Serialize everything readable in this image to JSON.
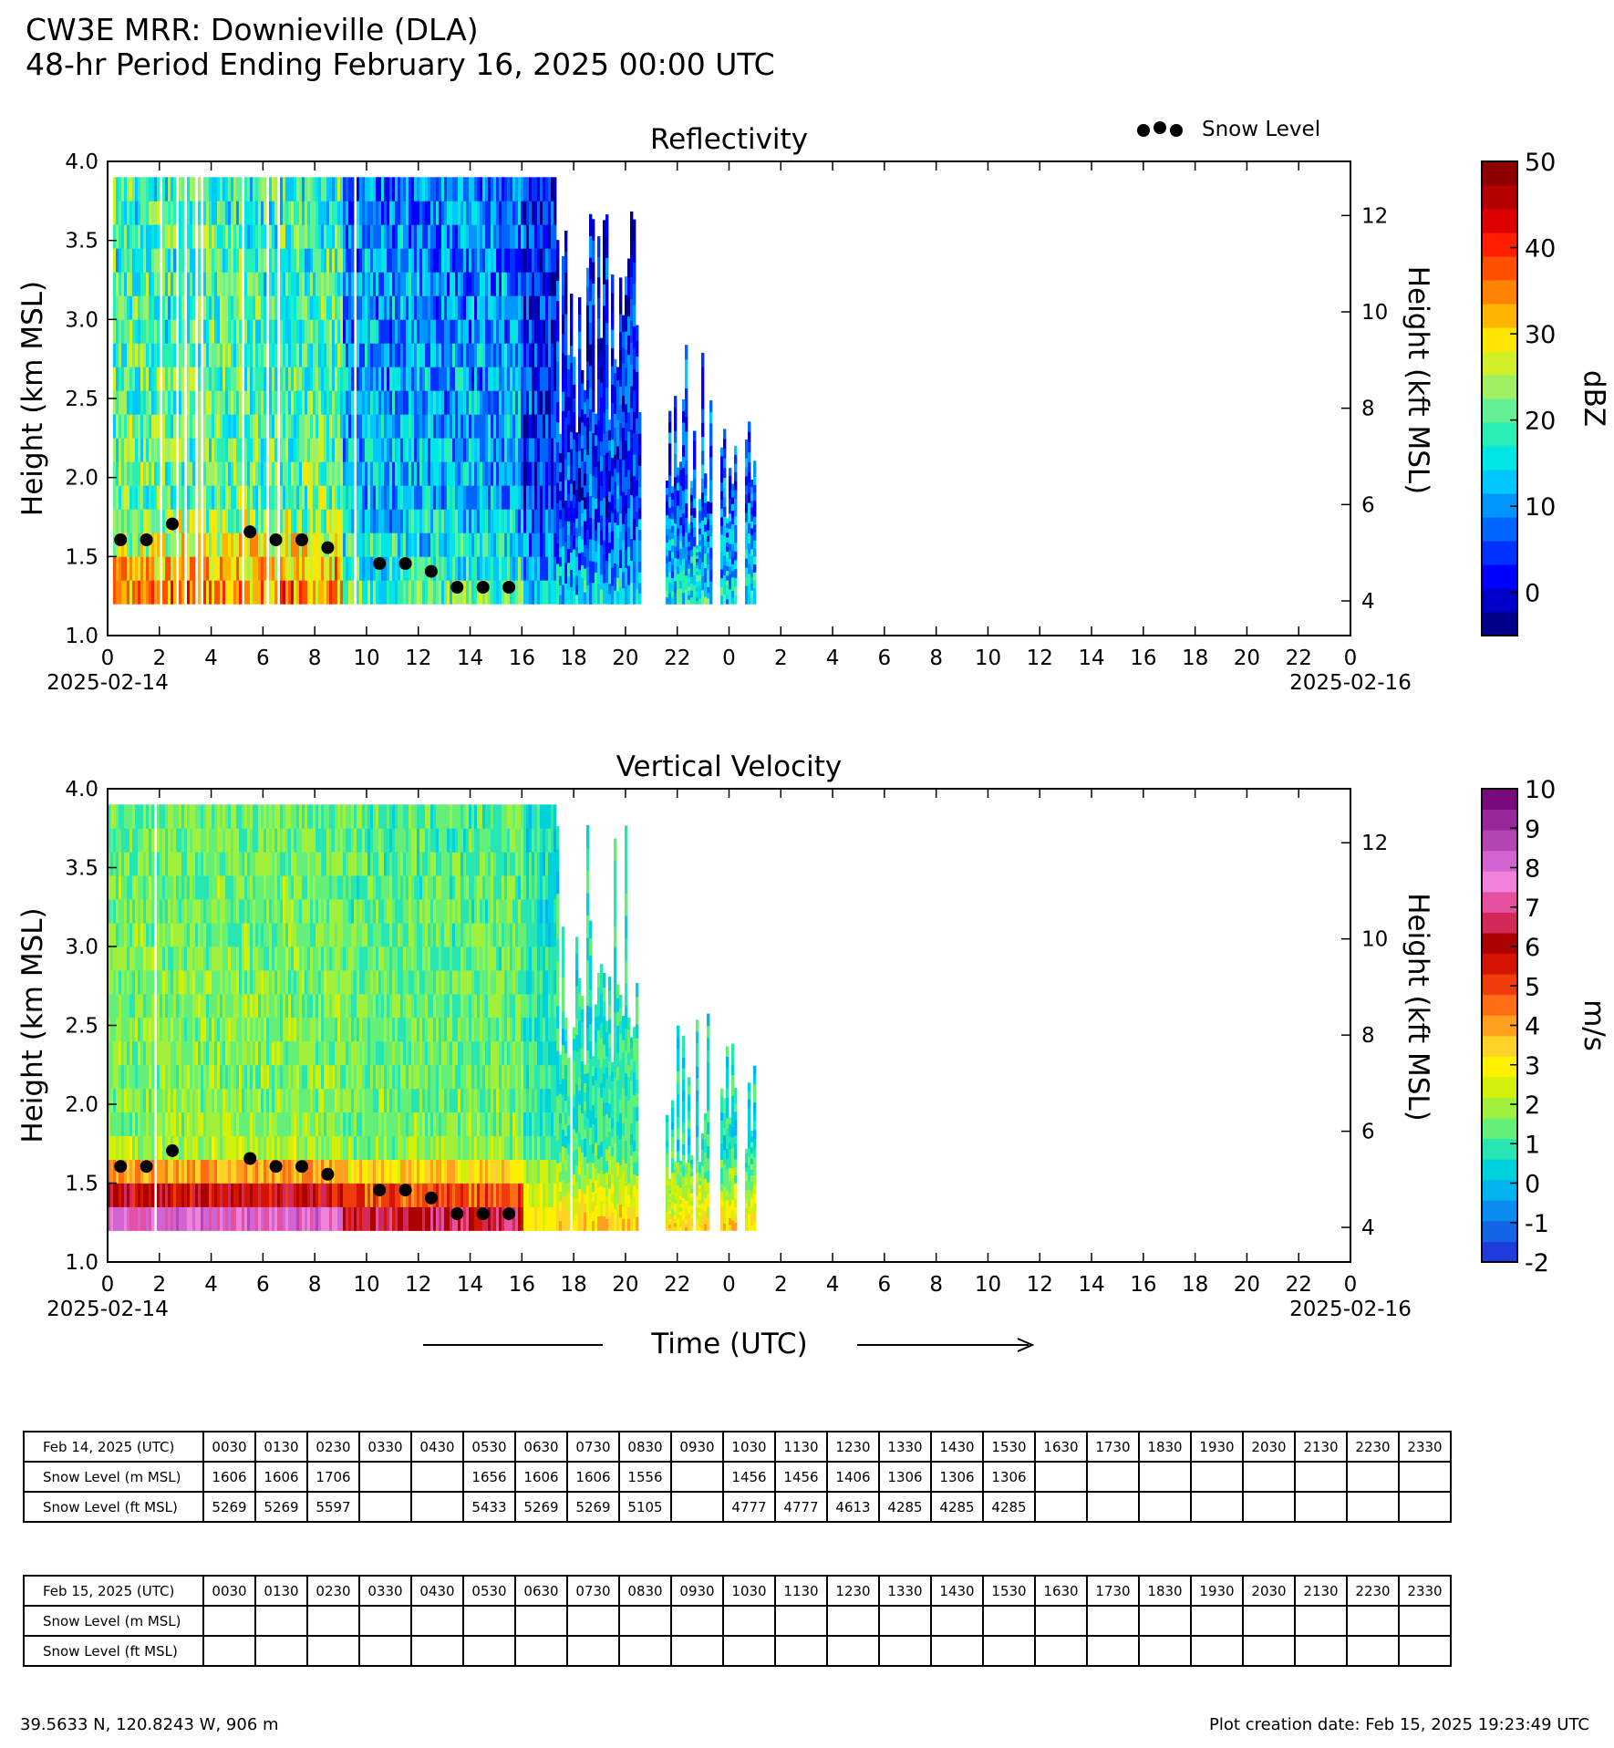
{
  "header": {
    "title_line1": "CW3E MRR: Downieville (DLA)",
    "title_line2": "48-hr Period Ending February 16, 2025 00:00 UTC"
  },
  "legend": {
    "snow_level_label": "Snow Level"
  },
  "chart_data": [
    {
      "type": "heatmap",
      "title": "Reflectivity",
      "ylabel": "Height (km MSL)",
      "y2label": "Height (kft MSL)",
      "colorbar_label": "dBZ",
      "ylim": [
        1.0,
        4.0
      ],
      "y_ticks": [
        "1.0",
        "1.5",
        "2.0",
        "2.5",
        "3.0",
        "3.5",
        "4.0"
      ],
      "y2_ticks": [
        "4",
        "6",
        "8",
        "10",
        "12"
      ],
      "x_ticks": [
        "0",
        "2",
        "4",
        "6",
        "8",
        "10",
        "12",
        "14",
        "16",
        "18",
        "20",
        "22",
        "0",
        "2",
        "4",
        "6",
        "8",
        "10",
        "12",
        "14",
        "16",
        "18",
        "20",
        "22",
        "0"
      ],
      "x_start_label": "2025-02-14",
      "x_end_label": "2025-02-16",
      "colorbar_ticks": [
        "0",
        "10",
        "20",
        "30",
        "40",
        "50"
      ],
      "colorbar_range": [
        -5,
        50
      ],
      "colorbar_colors": [
        "#00008b",
        "#0000c8",
        "#0000ff",
        "#0032ff",
        "#0064ff",
        "#0096ff",
        "#00c8ff",
        "#00e6e6",
        "#28f0b4",
        "#64f096",
        "#a0f064",
        "#d2f028",
        "#ffe600",
        "#ffb400",
        "#ff8200",
        "#ff5000",
        "#ff1e00",
        "#dc0000",
        "#b40000",
        "#8c0000"
      ],
      "data_extent_hours": [
        0,
        25
      ],
      "snow_level": {
        "series_name": "Snow Level",
        "x_hours": [
          0.5,
          1.5,
          2.5,
          5.5,
          6.5,
          7.5,
          8.5,
          10.5,
          11.5,
          12.5,
          13.5,
          14.5,
          15.5
        ],
        "y_km": [
          1.606,
          1.606,
          1.706,
          1.656,
          1.606,
          1.606,
          1.556,
          1.456,
          1.456,
          1.406,
          1.306,
          1.306,
          1.306
        ]
      }
    },
    {
      "type": "heatmap",
      "title": "Vertical Velocity",
      "ylabel": "Height (km MSL)",
      "y2label": "Height (kft MSL)",
      "colorbar_label": "m/s",
      "ylim": [
        1.0,
        4.0
      ],
      "y_ticks": [
        "1.0",
        "1.5",
        "2.0",
        "2.5",
        "3.0",
        "3.5",
        "4.0"
      ],
      "y2_ticks": [
        "4",
        "6",
        "8",
        "10",
        "12"
      ],
      "x_ticks": [
        "0",
        "2",
        "4",
        "6",
        "8",
        "10",
        "12",
        "14",
        "16",
        "18",
        "20",
        "22",
        "0",
        "2",
        "4",
        "6",
        "8",
        "10",
        "12",
        "14",
        "16",
        "18",
        "20",
        "22",
        "0"
      ],
      "x_start_label": "2025-02-14",
      "x_end_label": "2025-02-16",
      "xlabel": "Time (UTC)",
      "colorbar_ticks": [
        "-2",
        "-1",
        "0",
        "1",
        "2",
        "3",
        "4",
        "5",
        "6",
        "7",
        "8",
        "9",
        "10"
      ],
      "colorbar_range": [
        -2,
        10
      ],
      "colorbar_colors": [
        "#1e3cdc",
        "#1464e6",
        "#0a8cf0",
        "#00b4f0",
        "#00d2dc",
        "#28e6b4",
        "#64f078",
        "#a0f03c",
        "#d2f00a",
        "#fff000",
        "#ffd228",
        "#ffa01e",
        "#ff6e14",
        "#f03c0a",
        "#d21400",
        "#aa0000",
        "#d2285a",
        "#e650a0",
        "#f082dc",
        "#d264d2",
        "#b446b4",
        "#96289b",
        "#780a7d"
      ],
      "data_extent_hours": [
        0,
        25
      ],
      "snow_level": {
        "series_name": "Snow Level",
        "x_hours": [
          0.5,
          1.5,
          2.5,
          5.5,
          6.5,
          7.5,
          8.5,
          10.5,
          11.5,
          12.5,
          13.5,
          14.5,
          15.5
        ],
        "y_km": [
          1.606,
          1.606,
          1.706,
          1.656,
          1.606,
          1.606,
          1.556,
          1.456,
          1.456,
          1.406,
          1.306,
          1.306,
          1.306
        ]
      }
    }
  ],
  "tables": [
    {
      "header": "Feb 14, 2025 (UTC)",
      "times": [
        "0030",
        "0130",
        "0230",
        "0330",
        "0430",
        "0530",
        "0630",
        "0730",
        "0830",
        "0930",
        "1030",
        "1130",
        "1230",
        "1330",
        "1430",
        "1530",
        "1630",
        "1730",
        "1830",
        "1930",
        "2030",
        "2130",
        "2230",
        "2330"
      ],
      "rows": [
        {
          "label": "Snow Level (m MSL)",
          "values": [
            "1606",
            "1606",
            "1706",
            "",
            "",
            "1656",
            "1606",
            "1606",
            "1556",
            "",
            "1456",
            "1456",
            "1406",
            "1306",
            "1306",
            "1306",
            "",
            "",
            "",
            "",
            "",
            "",
            "",
            ""
          ]
        },
        {
          "label": "Snow Level (ft MSL)",
          "values": [
            "5269",
            "5269",
            "5597",
            "",
            "",
            "5433",
            "5269",
            "5269",
            "5105",
            "",
            "4777",
            "4777",
            "4613",
            "4285",
            "4285",
            "4285",
            "",
            "",
            "",
            "",
            "",
            "",
            "",
            ""
          ]
        }
      ]
    },
    {
      "header": "Feb 15, 2025 (UTC)",
      "times": [
        "0030",
        "0130",
        "0230",
        "0330",
        "0430",
        "0530",
        "0630",
        "0730",
        "0830",
        "0930",
        "1030",
        "1130",
        "1230",
        "1330",
        "1430",
        "1530",
        "1630",
        "1730",
        "1830",
        "1930",
        "2030",
        "2130",
        "2230",
        "2330"
      ],
      "rows": [
        {
          "label": "Snow Level (m MSL)",
          "values": [
            "",
            "",
            "",
            "",
            "",
            "",
            "",
            "",
            "",
            "",
            "",
            "",
            "",
            "",
            "",
            "",
            "",
            "",
            "",
            "",
            "",
            "",
            "",
            ""
          ]
        },
        {
          "label": "Snow Level (ft MSL)",
          "values": [
            "",
            "",
            "",
            "",
            "",
            "",
            "",
            "",
            "",
            "",
            "",
            "",
            "",
            "",
            "",
            "",
            "",
            "",
            "",
            "",
            "",
            "",
            "",
            ""
          ]
        }
      ]
    }
  ],
  "footer": {
    "location": "39.5633 N, 120.8243 W, 906 m",
    "creation": "Plot creation date: Feb 15, 2025 19:23:49 UTC"
  }
}
